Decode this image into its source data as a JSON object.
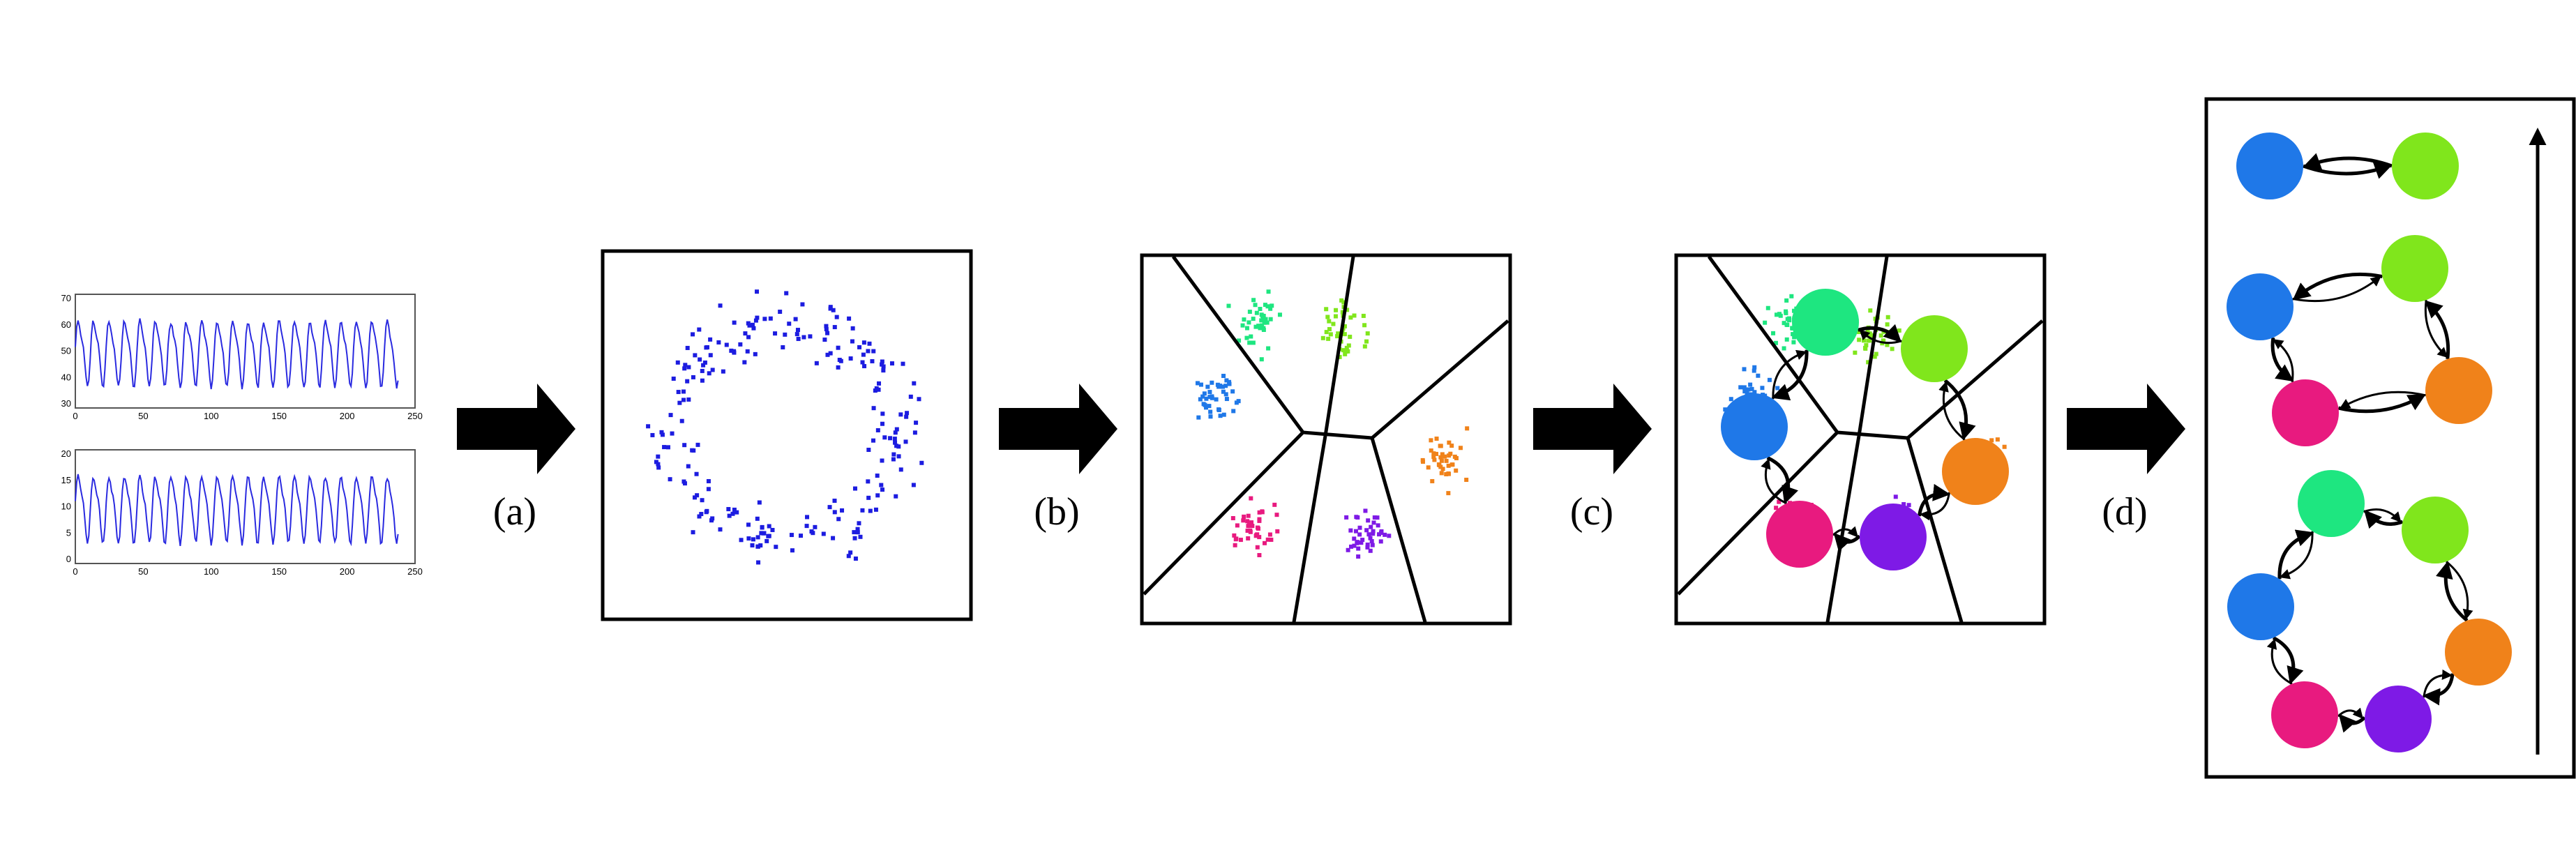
{
  "steps": [
    {
      "label": "(a)"
    },
    {
      "label": "(b)"
    },
    {
      "label": "(c)"
    },
    {
      "label": "(d)"
    }
  ],
  "timeseries_panel": {
    "top_plot": {
      "x_ticks": [
        "0",
        "50",
        "100",
        "150",
        "200",
        "250"
      ],
      "y_ticks": [
        "70",
        "60",
        "50",
        "40",
        "30"
      ],
      "line_color": "#2a2ae0"
    },
    "bottom_plot": {
      "x_ticks": [
        "0",
        "50",
        "100",
        "150",
        "200",
        "250"
      ],
      "y_ticks": [
        "20",
        "15",
        "10",
        "5",
        "0"
      ],
      "line_color": "#2a2ae0"
    }
  },
  "colors": {
    "points": "#1c1ce0",
    "blue": "#1f78e8",
    "green": "#1ee680",
    "lime": "#80e61c",
    "orange": "#f0821a",
    "purple": "#7e1ae6",
    "magenta": "#e81a7f",
    "arrow": "#000000"
  },
  "clusters": [
    "blue",
    "green",
    "lime",
    "orange",
    "purple",
    "magenta"
  ],
  "icons": [
    "right-arrow-icon",
    "up-arrow-icon"
  ]
}
